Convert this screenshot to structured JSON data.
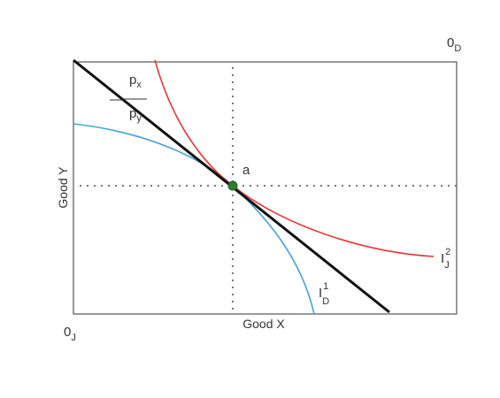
{
  "origin_d": {
    "main": "0",
    "sub": "D"
  },
  "origin_j": {
    "main": "0",
    "sub": "J"
  },
  "axis_y": "Good Y",
  "axis_x": "Good X",
  "point": "a",
  "price_ratio": {
    "sign": "—",
    "numerator": {
      "main": "p",
      "sub": "x"
    },
    "denominator": {
      "main": "p",
      "sub": "y"
    }
  },
  "curve_d": {
    "main": "I",
    "sup": "1",
    "sub": "D"
  },
  "curve_j": {
    "main": "I",
    "sup": "2",
    "sub": "J"
  }
}
